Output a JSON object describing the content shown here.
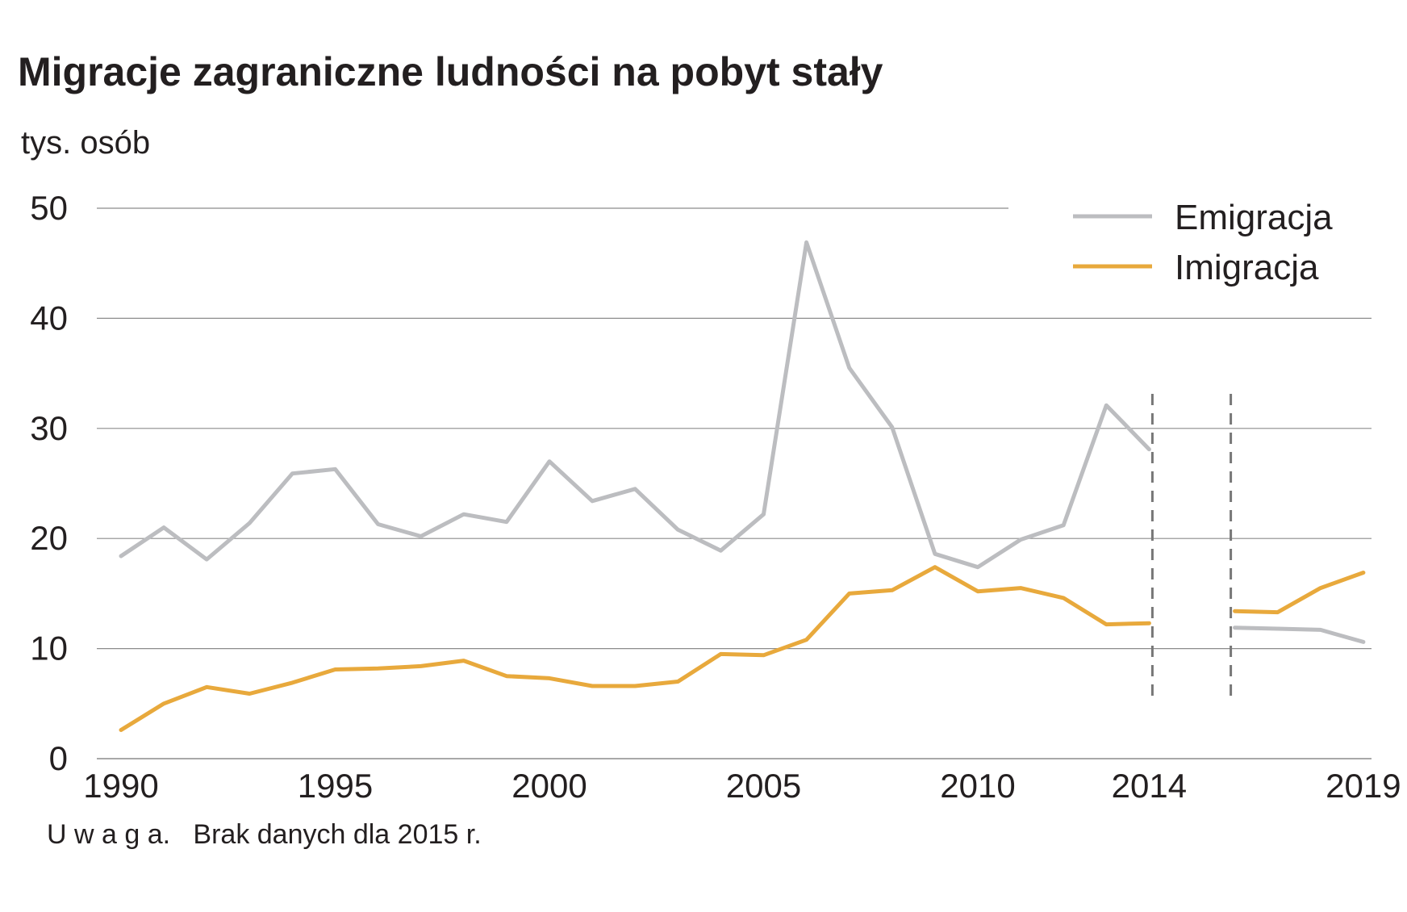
{
  "chart_data": {
    "type": "line",
    "title": "Migracje zagraniczne ludności na pobyt stały",
    "ylabel": "tys. osób",
    "xlabel": "",
    "ylim": [
      0,
      50
    ],
    "yticks": [
      0,
      10,
      20,
      30,
      40,
      50
    ],
    "x_tick_labels": [
      "1990",
      "1995",
      "2000",
      "2005",
      "2010",
      "2014",
      "2019"
    ],
    "grid": true,
    "legend_position": "top-right",
    "note": "U w a g a.   Brak danych dla 2015 r.",
    "break_year": 2015,
    "series": [
      {
        "name": "Emigracja",
        "color": "#bcbdc0",
        "x": [
          1990,
          1991,
          1992,
          1993,
          1994,
          1995,
          1996,
          1997,
          1998,
          1999,
          2000,
          2001,
          2002,
          2003,
          2004,
          2005,
          2006,
          2007,
          2008,
          2009,
          2010,
          2011,
          2012,
          2013,
          2014,
          2016,
          2017,
          2018,
          2019
        ],
        "values": [
          18.4,
          21.0,
          18.1,
          21.4,
          25.9,
          26.3,
          21.3,
          20.2,
          22.2,
          21.5,
          27.0,
          23.4,
          24.5,
          20.8,
          18.9,
          22.2,
          46.9,
          35.5,
          30.1,
          18.6,
          17.4,
          19.9,
          21.2,
          32.1,
          28.1,
          11.9,
          11.8,
          11.7,
          10.6
        ]
      },
      {
        "name": "Imigracja",
        "color": "#e8a93c",
        "x": [
          1990,
          1991,
          1992,
          1993,
          1994,
          1995,
          1996,
          1997,
          1998,
          1999,
          2000,
          2001,
          2002,
          2003,
          2004,
          2005,
          2006,
          2007,
          2008,
          2009,
          2010,
          2011,
          2012,
          2013,
          2014,
          2016,
          2017,
          2018,
          2019
        ],
        "values": [
          2.6,
          5.0,
          6.5,
          5.9,
          6.9,
          8.1,
          8.2,
          8.4,
          8.9,
          7.5,
          7.3,
          6.6,
          6.6,
          7.0,
          9.5,
          9.4,
          10.8,
          15.0,
          15.3,
          17.4,
          15.2,
          15.5,
          14.6,
          12.2,
          12.3,
          13.4,
          13.3,
          15.5,
          16.9
        ]
      }
    ]
  }
}
